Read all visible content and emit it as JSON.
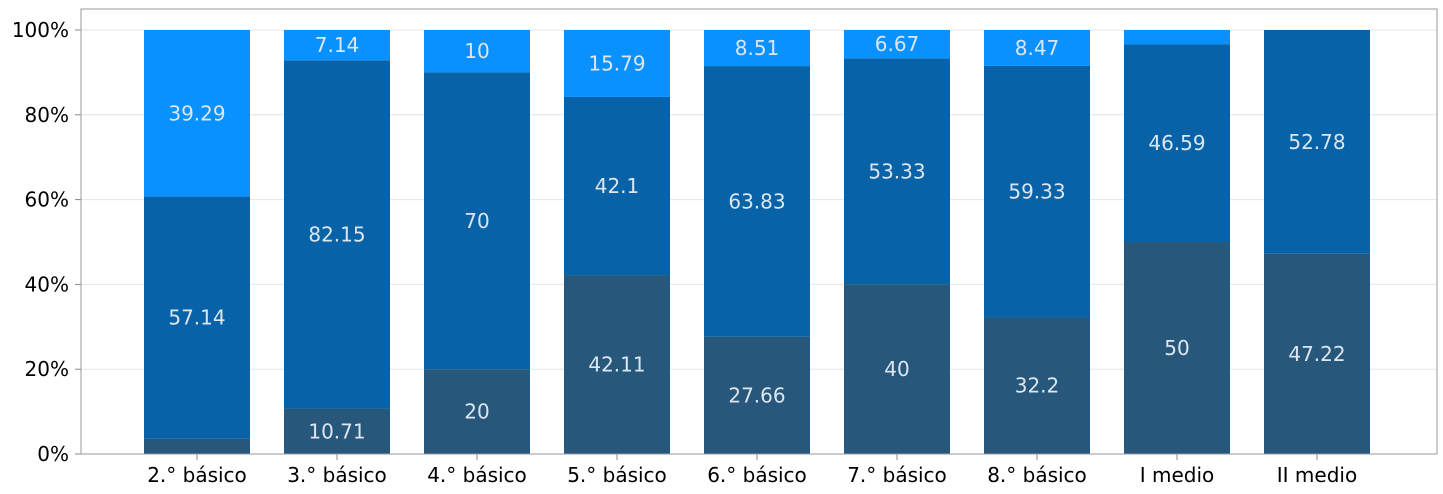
{
  "chart_data": {
    "type": "bar",
    "stacked": true,
    "normalized": true,
    "title": "",
    "xlabel": "",
    "ylabel": "",
    "ylim": [
      0,
      100
    ],
    "y_ticks": [
      "0%",
      "20%",
      "40%",
      "60%",
      "80%",
      "100%"
    ],
    "grid": true,
    "legend": "none",
    "categories": [
      "2.° básico",
      "3.° básico",
      "4.° básico",
      "5.° básico",
      "6.° básico",
      "7.° básico",
      "8.° básico",
      "I medio",
      "II medio"
    ],
    "series": [
      {
        "color": "#27587c",
        "values": [
          3.57,
          10.71,
          20,
          42.11,
          27.66,
          40,
          32.2,
          50,
          47.22
        ],
        "labels": [
          "",
          "10.71",
          "20",
          "42.11",
          "27.66",
          "40",
          "32.2",
          "50",
          "47.22"
        ]
      },
      {
        "color": "#0762a8",
        "values": [
          57.14,
          82.15,
          70,
          42.1,
          63.83,
          53.33,
          59.33,
          46.59,
          52.78
        ],
        "labels": [
          "57.14",
          "82.15",
          "70",
          "42.1",
          "63.83",
          "53.33",
          "59.33",
          "46.59",
          "52.78"
        ]
      },
      {
        "color": "#0891ff",
        "values": [
          39.29,
          7.14,
          10,
          15.79,
          8.51,
          6.67,
          8.47,
          3.41,
          0
        ],
        "labels": [
          "39.29",
          "7.14",
          "10",
          "15.79",
          "8.51",
          "6.67",
          "8.47",
          "",
          ""
        ]
      }
    ]
  }
}
